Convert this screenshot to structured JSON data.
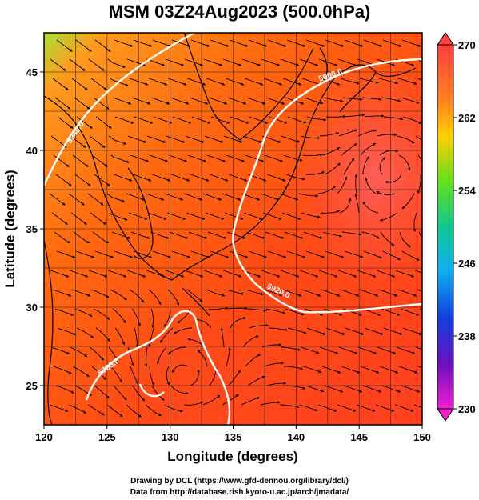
{
  "title": "MSM 03Z24Aug2023 (500.0hPa)",
  "x_axis": {
    "label": "Longitude (degrees)",
    "ticks": [
      "120",
      "125",
      "130",
      "135",
      "140",
      "145",
      "150"
    ]
  },
  "y_axis": {
    "label": "Latitude  (degrees)",
    "ticks": [
      "25",
      "30",
      "35",
      "40",
      "45"
    ]
  },
  "colorbar": {
    "ticks": [
      "270",
      "262",
      "254",
      "246",
      "238",
      "230"
    ],
    "min": 230,
    "max": 270
  },
  "contours": [
    {
      "label": "5880.0"
    },
    {
      "label": "5900.0"
    },
    {
      "label": "5920.0"
    },
    {
      "label": "5940.0"
    }
  ],
  "credits": {
    "line1": "Drawing by DCL (https://www.gfd-dennou.org/library/dcl/)",
    "line2": "Data from http://database.rish.kyoto-u.ac.jp/arch/jmadata/"
  }
}
